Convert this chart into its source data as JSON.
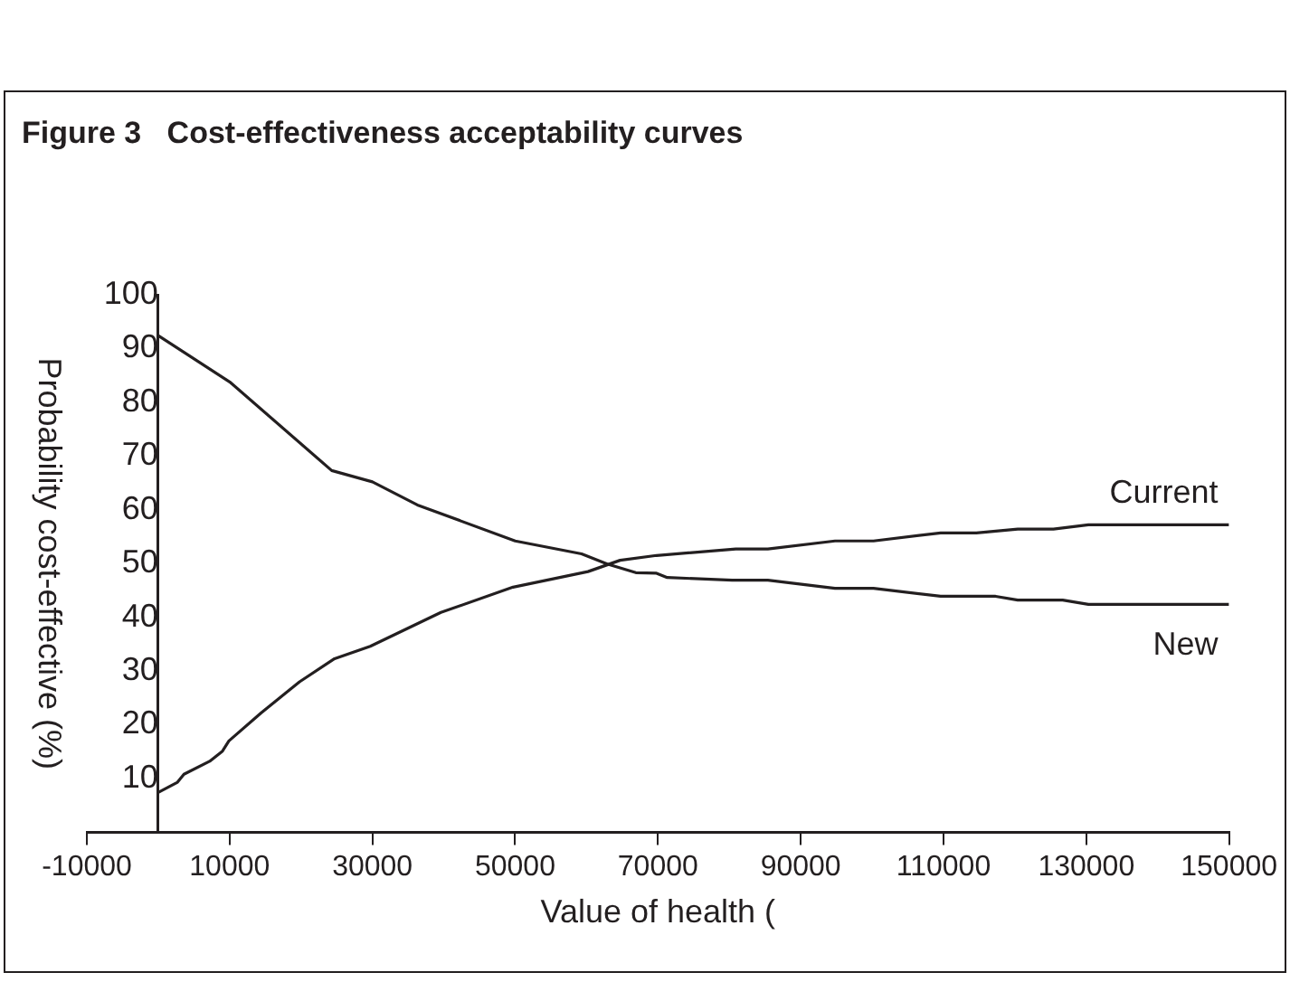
{
  "chart_data": {
    "type": "line",
    "title": "Figure 3   Cost-effectiveness acceptability curves",
    "xlabel": "Value of health (",
    "ylabel": "Probability cost-effective (%)",
    "xlim": [
      -10000,
      150000
    ],
    "xticks": [
      -10000,
      10000,
      30000,
      50000,
      70000,
      90000,
      110000,
      130000,
      150000
    ],
    "ylim": [
      0,
      100
    ],
    "yticks": [
      10,
      20,
      30,
      40,
      50,
      60,
      70,
      80,
      90,
      100
    ],
    "grid": false,
    "legend": false,
    "marker": "none",
    "line_style": "solid",
    "series": [
      {
        "name": "Current",
        "color": "#231f20",
        "x": [
          0,
          2700,
          3600,
          7200,
          9000,
          9900,
          14400,
          19800,
          24700,
          29700,
          39600,
          49700,
          60200,
          64700,
          69800,
          80900,
          85400,
          94800,
          100200,
          109600,
          114600,
          120400,
          125400,
          130300,
          150000
        ],
        "values": [
          7.4,
          9.3,
          10.8,
          13.2,
          15.1,
          17,
          22.2,
          28,
          32.3,
          34.6,
          40.9,
          45.6,
          48.5,
          50.6,
          51.5,
          52.7,
          52.7,
          54.2,
          54.2,
          55.7,
          55.7,
          56.4,
          56.4,
          57.2,
          57.2
        ]
      },
      {
        "name": "New",
        "color": "#231f20",
        "x": [
          0,
          10000,
          24300,
          30000,
          36300,
          50000,
          59300,
          62900,
          66900,
          69800,
          71300,
          80400,
          85400,
          94800,
          100200,
          109600,
          117300,
          120400,
          126700,
          130300,
          150000
        ],
        "values": [
          92.4,
          83.8,
          67.3,
          65.2,
          60.9,
          54.2,
          51.8,
          49.9,
          48.3,
          48.2,
          47.4,
          46.9,
          46.9,
          45.4,
          45.4,
          43.9,
          43.9,
          43.2,
          43.2,
          42.4,
          42.4
        ]
      }
    ]
  }
}
